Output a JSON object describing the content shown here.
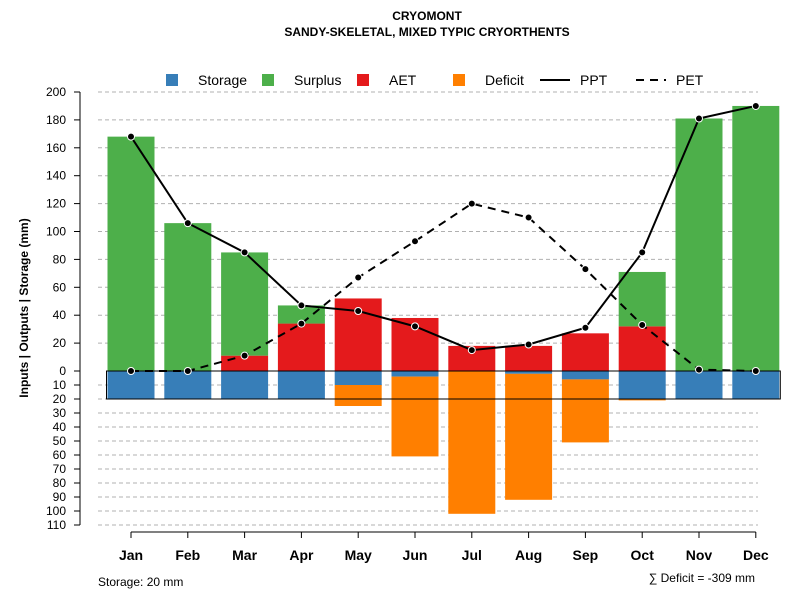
{
  "chart_data": {
    "type": "bar",
    "title": "CRYOMONT",
    "subtitle": "SANDY-SKELETAL, MIXED TYPIC CRYORTHENTS",
    "ylabel": "Inputs | Outputs | Storage     (mm)",
    "ylim_upper": [
      0,
      200
    ],
    "ylim_lower": [
      0,
      110
    ],
    "yticks_upper": [
      "0",
      "20",
      "40",
      "60",
      "80",
      "100",
      "120",
      "140",
      "160",
      "180",
      "200"
    ],
    "yticks_lower": [
      "10",
      "20",
      "30",
      "40",
      "50",
      "60",
      "70",
      "80",
      "90",
      "100",
      "110"
    ],
    "categories": [
      "Jan",
      "Feb",
      "Mar",
      "Apr",
      "May",
      "Jun",
      "Jul",
      "Aug",
      "Sep",
      "Oct",
      "Nov",
      "Dec"
    ],
    "legend": [
      "Storage",
      "Surplus",
      "AET",
      "Deficit",
      "PPT",
      "PET"
    ],
    "colors": {
      "storage": "#377eb8",
      "surplus": "#4daf4a",
      "aet": "#e41a1c",
      "deficit": "#ff7f00",
      "line": "#000000",
      "grid": "#b0b0b0"
    },
    "series": [
      {
        "name": "Surplus",
        "values": [
          168,
          106,
          74,
          13,
          0,
          0,
          0,
          0,
          0,
          39,
          181,
          190
        ]
      },
      {
        "name": "AET",
        "values": [
          0,
          0,
          11,
          34,
          52,
          38,
          18,
          18,
          27,
          32,
          0,
          0
        ]
      },
      {
        "name": "Storage",
        "values": [
          20,
          20,
          20,
          20,
          10,
          4,
          0,
          2,
          6,
          20,
          20,
          20
        ]
      },
      {
        "name": "Deficit",
        "values": [
          0,
          0,
          0,
          0,
          15,
          57,
          102,
          90,
          45,
          1,
          0,
          0
        ]
      },
      {
        "name": "PPT",
        "values": [
          168,
          106,
          85,
          47,
          43,
          32,
          15,
          19,
          31,
          85,
          181,
          190
        ]
      },
      {
        "name": "PET",
        "values": [
          0,
          0,
          11,
          34,
          67,
          93,
          120,
          110,
          73,
          33,
          1,
          0
        ]
      }
    ],
    "storage_label": "Storage: 20 mm",
    "deficit_label": "∑ Deficit = -309 mm"
  }
}
